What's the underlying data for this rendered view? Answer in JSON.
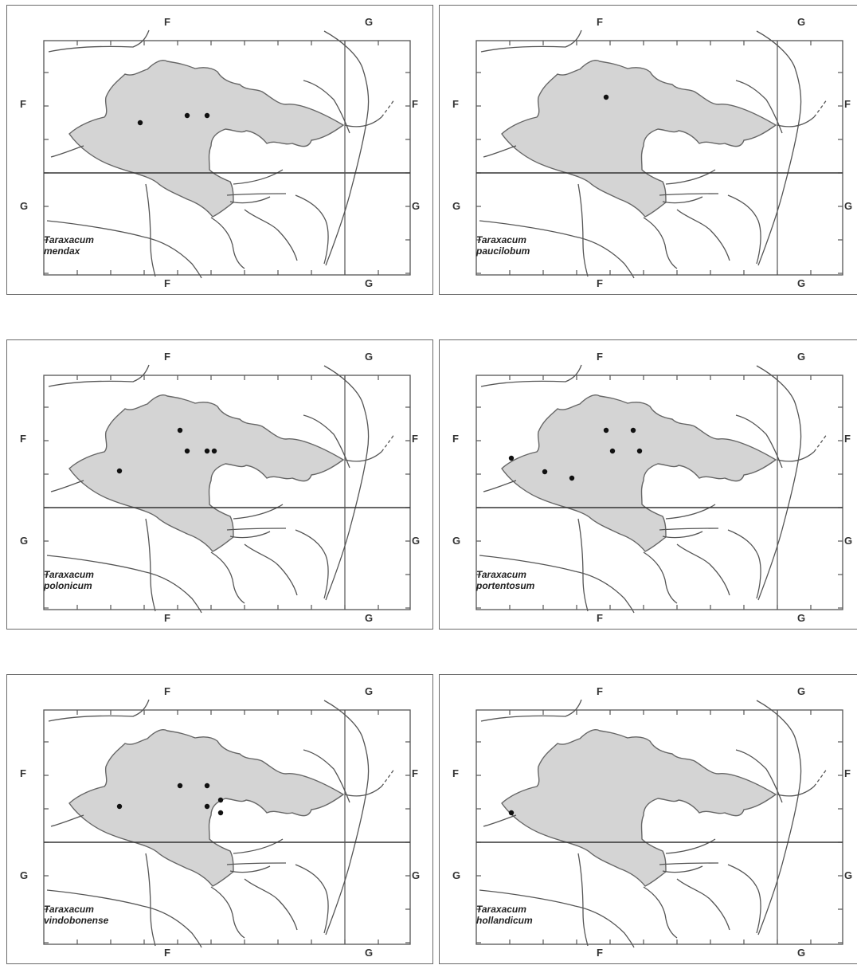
{
  "grid_labels": {
    "col_left": "F",
    "col_right": "G",
    "row_top": "F",
    "row_bottom": "G"
  },
  "colors": {
    "region_fill": "#d4d4d4",
    "line": "#555555",
    "dot": "#111111"
  },
  "panels": [
    {
      "genus": "Taraxacum",
      "epithet": "mendax",
      "records": [
        [
          167,
          147
        ],
        [
          226,
          138
        ],
        [
          251,
          138
        ]
      ]
    },
    {
      "genus": "Taraxacum",
      "epithet": "paucilobum",
      "records": [
        [
          209,
          115
        ]
      ]
    },
    {
      "genus": "Taraxacum",
      "epithet": "polonicum",
      "records": [
        [
          141,
          164
        ],
        [
          217,
          113
        ],
        [
          226,
          139
        ],
        [
          251,
          139
        ],
        [
          260,
          139
        ]
      ]
    },
    {
      "genus": "Taraxacum",
      "epithet": "portentosum",
      "records": [
        [
          90,
          148
        ],
        [
          132,
          165
        ],
        [
          166,
          173
        ],
        [
          209,
          113
        ],
        [
          217,
          139
        ],
        [
          243,
          113
        ],
        [
          251,
          139
        ]
      ]
    },
    {
      "genus": "Taraxacum",
      "epithet": "vindobonense",
      "records": [
        [
          141,
          165
        ],
        [
          217,
          139
        ],
        [
          251,
          139
        ],
        [
          251,
          165
        ],
        [
          268,
          157
        ],
        [
          268,
          173
        ]
      ]
    },
    {
      "genus": "Taraxacum",
      "epithet": "hollandicum",
      "records": [
        [
          90,
          173
        ]
      ]
    }
  ]
}
